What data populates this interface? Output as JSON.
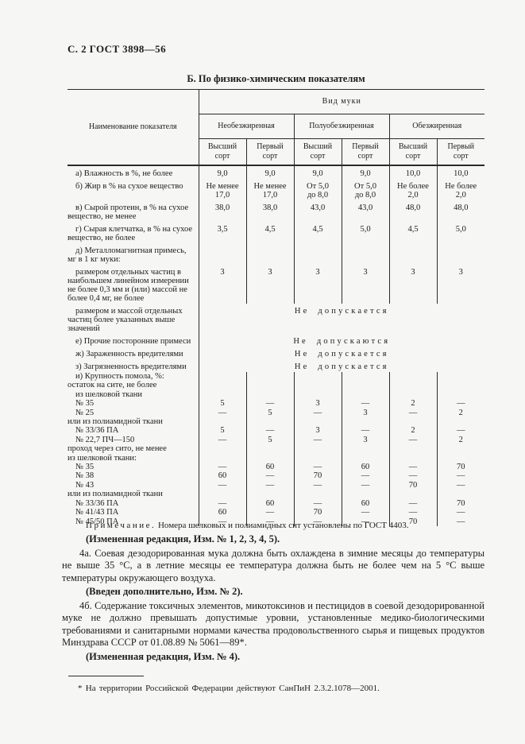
{
  "page": {
    "header": "С. 2 ГОСТ 3898—56",
    "section_title": "Б.  По физико-химическим показателям"
  },
  "table": {
    "name_header": "Наименование показателя",
    "kind_header": "Вид муки",
    "groups": [
      "Необезжиренная",
      "Полуобезжиренная",
      "Обезжиренная"
    ],
    "grades": [
      "Высший сорт",
      "Первый сорт",
      "Высший сорт",
      "Первый сорт",
      "Высший сорт",
      "Первый сорт"
    ],
    "rows": [
      {
        "type": "values",
        "style": "item",
        "label": "а)  Влажность в %, не более",
        "cells": [
          "9,0",
          "9,0",
          "9,0",
          "9,0",
          "10,0",
          "10,0"
        ]
      },
      {
        "type": "values",
        "style": "item",
        "label": "б)  Жир в % на сухое вещество",
        "cells": [
          "Не менее\n17,0",
          "Не менее\n17,0",
          "От 5,0\nдо 8,0",
          "От 5,0\nдо 8,0",
          "Не более\n2,0",
          "Не более\n2,0"
        ]
      },
      {
        "type": "values",
        "style": "item",
        "label": "в)  Сырой протеин, в % на сухое вещество, не менее",
        "cells": [
          "38,0",
          "38,0",
          "43,0",
          "43,0",
          "48,0",
          "48,0"
        ]
      },
      {
        "type": "values",
        "style": "item",
        "label": "г)  Сырая клетчатка, в % на сухое вещество, не более",
        "cells": [
          "3,5",
          "4,5",
          "4,5",
          "5,0",
          "4,5",
          "5,0"
        ]
      },
      {
        "type": "values",
        "style": "item",
        "label": "д)  Металломагнитная примесь, мг в 1 кг муки:",
        "cells": [
          "",
          "",
          "",
          "",
          "",
          ""
        ]
      },
      {
        "type": "values",
        "style": "item",
        "label": "размером отдельных частиц в наибольшем линейном измерении не более 0,3 мм и (или) массой не более 0,4 мг, не более",
        "cells": [
          "3",
          "3",
          "3",
          "3",
          "3",
          "3"
        ]
      },
      {
        "type": "span",
        "style": "item",
        "label": "размером и массой отдельных частиц более указанных выше значений",
        "span": "Не допускается"
      },
      {
        "type": "span",
        "style": "item",
        "label": "е) Прочие посторонние примеси",
        "span": "Не допускаются"
      },
      {
        "type": "span",
        "style": "item",
        "label": "ж) Зараженность вредителями",
        "span": "Не допускается"
      },
      {
        "type": "span",
        "style": "item",
        "label": "з) Загрязненность вредителями",
        "span": "Не допускается"
      },
      {
        "type": "values",
        "style": "item",
        "tight": true,
        "first": true,
        "label": "и)  Крупность помола, %:",
        "cells": [
          "",
          "",
          "",
          "",
          "",
          ""
        ]
      },
      {
        "type": "values",
        "style": "flush",
        "tight": true,
        "label": "остаток на сите, не более",
        "cells": [
          "",
          "",
          "",
          "",
          "",
          ""
        ]
      },
      {
        "type": "values",
        "style": "sub",
        "tight": true,
        "label": "из шелковой ткани",
        "cells": [
          "",
          "",
          "",
          "",
          "",
          ""
        ]
      },
      {
        "type": "values",
        "style": "sub",
        "tight": true,
        "label": "№ 35",
        "cells": [
          "5",
          "—",
          "3",
          "—",
          "2",
          "—"
        ]
      },
      {
        "type": "values",
        "style": "sub",
        "tight": true,
        "label": "№ 25",
        "cells": [
          "—",
          "5",
          "—",
          "3",
          "—",
          "2"
        ]
      },
      {
        "type": "values",
        "style": "flush",
        "tight": true,
        "label": "или из полиамидной ткани",
        "cells": [
          "",
          "",
          "",
          "",
          "",
          ""
        ]
      },
      {
        "type": "values",
        "style": "sub",
        "tight": true,
        "label": "№ 33/36 ПА",
        "cells": [
          "5",
          "—",
          "3",
          "—",
          "2",
          "—"
        ]
      },
      {
        "type": "values",
        "style": "sub",
        "tight": true,
        "label": "№ 22,7 ПЧ—150",
        "cells": [
          "—",
          "5",
          "—",
          "3",
          "—",
          "2"
        ]
      },
      {
        "type": "values",
        "style": "flush",
        "tight": true,
        "label": "проход через сито, не менее",
        "cells": [
          "",
          "",
          "",
          "",
          "",
          ""
        ]
      },
      {
        "type": "values",
        "style": "flush",
        "tight": true,
        "label": "из шелковой ткани:",
        "cells": [
          "",
          "",
          "",
          "",
          "",
          ""
        ]
      },
      {
        "type": "values",
        "style": "sub",
        "tight": true,
        "label": "№ 35",
        "cells": [
          "—",
          "60",
          "—",
          "60",
          "—",
          "70"
        ]
      },
      {
        "type": "values",
        "style": "sub",
        "tight": true,
        "label": "№ 38",
        "cells": [
          "60",
          "—",
          "70",
          "—",
          "—",
          "—"
        ]
      },
      {
        "type": "values",
        "style": "sub",
        "tight": true,
        "label": "№ 43",
        "cells": [
          "—",
          "—",
          "—",
          "—",
          "70",
          "—"
        ]
      },
      {
        "type": "values",
        "style": "flush",
        "tight": true,
        "label": "или из полиамидной ткани",
        "cells": [
          "",
          "",
          "",
          "",
          "",
          ""
        ]
      },
      {
        "type": "values",
        "style": "sub",
        "tight": true,
        "label": "№ 33/36 ПА",
        "cells": [
          "—",
          "60",
          "—",
          "60",
          "—",
          "70"
        ]
      },
      {
        "type": "values",
        "style": "sub",
        "tight": true,
        "label": "№ 41/43 ПА",
        "cells": [
          "60",
          "—",
          "70",
          "—",
          "—",
          "—"
        ]
      },
      {
        "type": "values",
        "style": "sub",
        "tight": true,
        "label": "№ 45/50 ПА",
        "cells": [
          "—",
          "—",
          "—",
          "—",
          "70",
          "—"
        ]
      }
    ]
  },
  "notes": {
    "note_label": "Примечание.",
    "note_text": " Номера шелковых и полиамидных сит установлены по ГОСТ 4403.",
    "amendment_1": "(Измененная редакция, Изм. № 1, 2, 3, 4, 5).",
    "para_4a": "4а.  Соевая дезодорированная мука должна быть охлаждена в зимние месяцы до температуры не выше 35 °С, а в летние месяцы ее температура должна быть не более чем на 5 °С выше температуры окружающего воздуха.",
    "amendment_2": "(Введен дополнительно, Изм. № 2).",
    "para_4b": "4б.  Содержание токсичных элементов, микотоксинов и пестицидов в соевой дезодорированной муке не должно превышать допустимые уровни, установленные медико-биологическими требованиями и санитарными нормами качества продовольственного сырья и пищевых продуктов Минздрава СССР от 01.08.89 № 5061—89*.",
    "amendment_3": "(Измененная редакция, Изм. № 4).",
    "footnote": "* На территории Российской Федерации действуют СанПиН 2.3.2.1078—2001."
  }
}
